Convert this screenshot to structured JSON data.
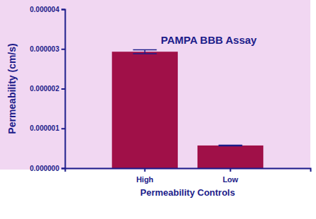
{
  "chart_data": {
    "type": "bar",
    "title": "PAMPA BBB Assay",
    "x_label": "Permeability Controls",
    "y_label": "Permeability (cm/s)",
    "categories": [
      "High",
      "Low"
    ],
    "values": [
      2.93e-06,
      5.7e-07
    ],
    "errors": [
      5e-08,
      1e-08
    ],
    "color": "#a01048",
    "ylim": [
      0,
      4e-06
    ],
    "yticks": [
      {
        "value": 0,
        "label": "0.000000"
      },
      {
        "value": 1e-06,
        "label": "0.000001"
      },
      {
        "value": 2e-06,
        "label": "0.000002"
      },
      {
        "value": 3e-06,
        "label": "0.000003"
      },
      {
        "value": 4e-06,
        "label": "0.000004"
      }
    ],
    "grid": false
  }
}
